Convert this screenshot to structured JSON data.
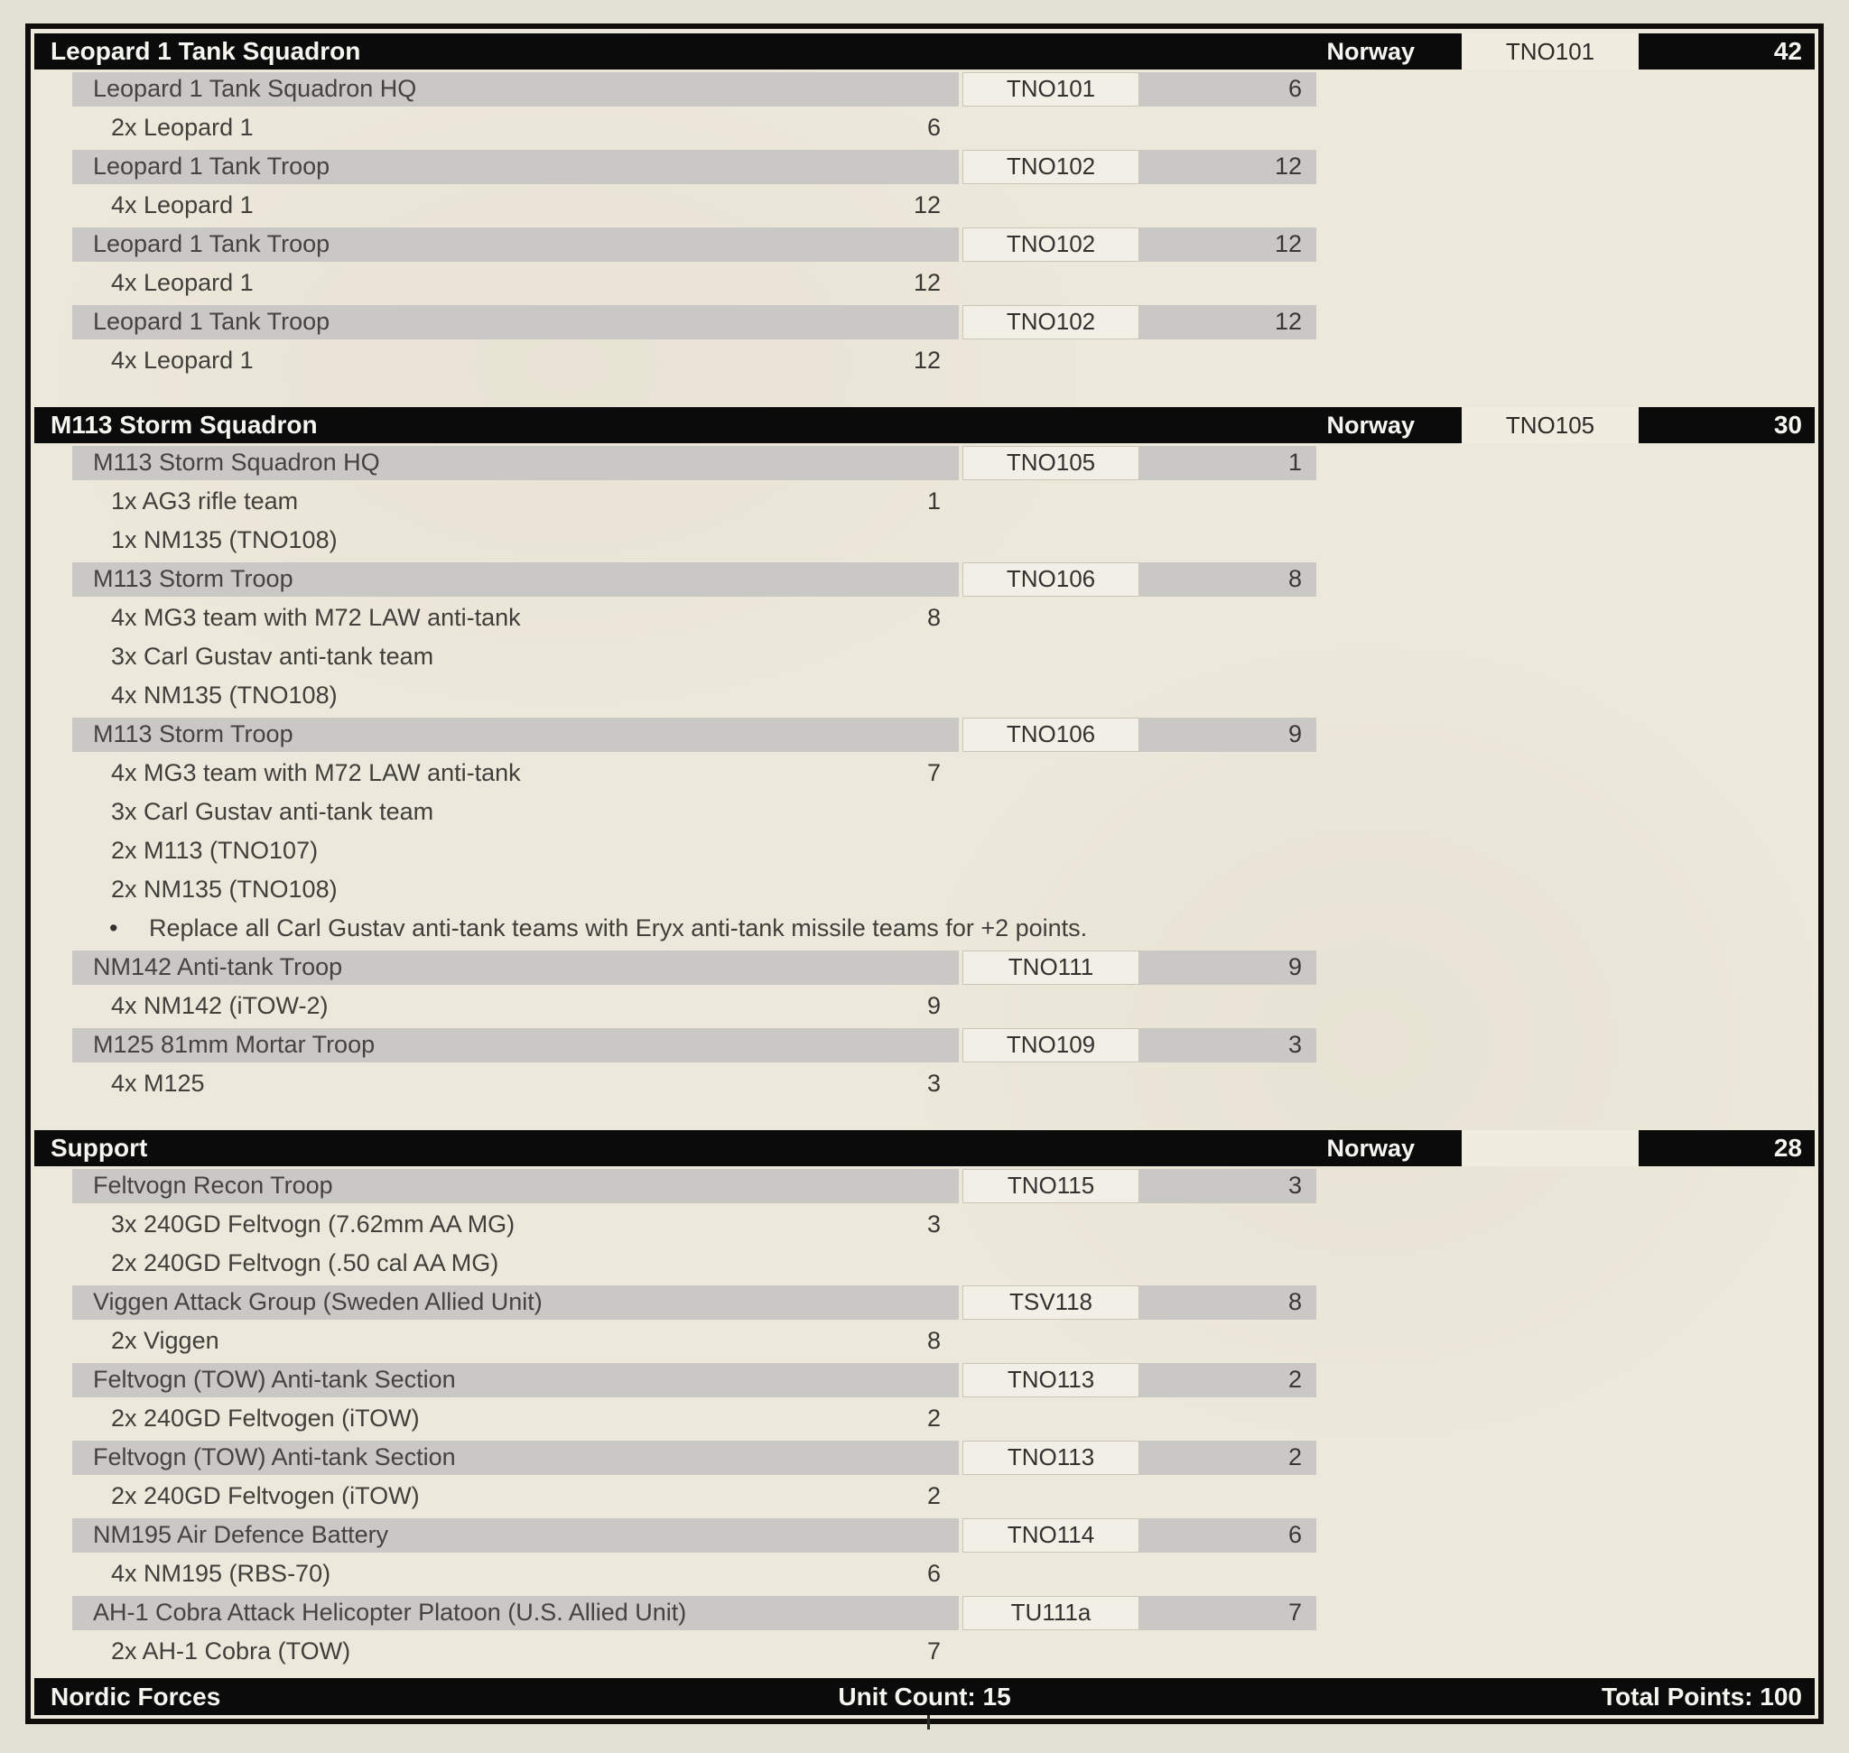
{
  "colors": {
    "bar_black": "#0b0b0b",
    "row_gray": "#c9c8c5",
    "parchment": "#ece8db",
    "page_bg": "#e2e1d5",
    "code_box_bg": "#f2efe6"
  },
  "sections": [
    {
      "title": "Leopard 1 Tank Squadron",
      "nation": "Norway",
      "code": "TNO101",
      "points": "42",
      "rows": [
        {
          "type": "unit",
          "name": "Leopard 1 Tank Squadron HQ",
          "code": "TNO101",
          "points": "6"
        },
        {
          "type": "equip",
          "name": "2x Leopard 1",
          "points": "6"
        },
        {
          "type": "unit",
          "name": "Leopard 1 Tank Troop",
          "code": "TNO102",
          "points": "12"
        },
        {
          "type": "equip",
          "name": "4x Leopard 1",
          "points": "12"
        },
        {
          "type": "unit",
          "name": "Leopard 1 Tank Troop",
          "code": "TNO102",
          "points": "12"
        },
        {
          "type": "equip",
          "name": "4x Leopard 1",
          "points": "12"
        },
        {
          "type": "unit",
          "name": "Leopard 1 Tank Troop",
          "code": "TNO102",
          "points": "12"
        },
        {
          "type": "equip",
          "name": "4x Leopard 1",
          "points": "12"
        }
      ]
    },
    {
      "title": "M113 Storm Squadron",
      "nation": "Norway",
      "code": "TNO105",
      "points": "30",
      "rows": [
        {
          "type": "unit",
          "name": "M113 Storm Squadron HQ",
          "code": "TNO105",
          "points": "1"
        },
        {
          "type": "equip",
          "name": "1x AG3 rifle team",
          "points": "1"
        },
        {
          "type": "equip",
          "name": "1x NM135 (TNO108)",
          "points": ""
        },
        {
          "type": "unit",
          "name": "M113 Storm Troop",
          "code": "TNO106",
          "points": "8"
        },
        {
          "type": "equip",
          "name": "4x MG3 team with M72 LAW anti-tank",
          "points": "8"
        },
        {
          "type": "equip",
          "name": "3x Carl Gustav anti-tank team",
          "points": ""
        },
        {
          "type": "equip",
          "name": "4x NM135 (TNO108)",
          "points": ""
        },
        {
          "type": "unit",
          "name": "M113 Storm Troop",
          "code": "TNO106",
          "points": "9"
        },
        {
          "type": "equip",
          "name": "4x MG3 team with M72 LAW anti-tank",
          "points": "7"
        },
        {
          "type": "equip",
          "name": "3x Carl Gustav anti-tank team",
          "points": ""
        },
        {
          "type": "equip",
          "name": "2x M113 (TNO107)",
          "points": ""
        },
        {
          "type": "equip",
          "name": "2x NM135 (TNO108)",
          "points": ""
        },
        {
          "type": "note",
          "bullet": "•",
          "text": "Replace all Carl Gustav anti-tank teams with Eryx anti-tank missile teams for +2 points."
        },
        {
          "type": "unit",
          "name": "NM142 Anti-tank Troop",
          "code": "TNO111",
          "points": "9"
        },
        {
          "type": "equip",
          "name": "4x NM142 (iTOW-2)",
          "points": "9"
        },
        {
          "type": "unit",
          "name": "M125 81mm Mortar Troop",
          "code": "TNO109",
          "points": "3"
        },
        {
          "type": "equip",
          "name": "4x M125",
          "points": "3"
        }
      ]
    },
    {
      "title": "Support",
      "nation": "Norway",
      "code": "",
      "points": "28",
      "rows": [
        {
          "type": "unit",
          "name": "Feltvogn Recon Troop",
          "code": "TNO115",
          "points": "3"
        },
        {
          "type": "equip",
          "name": "3x 240GD Feltvogn (7.62mm AA MG)",
          "points": "3"
        },
        {
          "type": "equip",
          "name": "2x 240GD Feltvogn (.50 cal AA MG)",
          "points": ""
        },
        {
          "type": "unit",
          "name": "Viggen Attack Group (Sweden Allied Unit)",
          "code": "TSV118",
          "points": "8"
        },
        {
          "type": "equip",
          "name": "2x Viggen",
          "points": "8"
        },
        {
          "type": "unit",
          "name": "Feltvogn (TOW) Anti-tank Section",
          "code": "TNO113",
          "points": "2"
        },
        {
          "type": "equip",
          "name": "2x 240GD Feltvogen (iTOW)",
          "points": "2"
        },
        {
          "type": "unit",
          "name": "Feltvogn (TOW) Anti-tank Section",
          "code": "TNO113",
          "points": "2"
        },
        {
          "type": "equip",
          "name": "2x 240GD Feltvogen (iTOW)",
          "points": "2"
        },
        {
          "type": "unit",
          "name": "NM195 Air Defence Battery",
          "code": "TNO114",
          "points": "6"
        },
        {
          "type": "equip",
          "name": "4x NM195 (RBS-70)",
          "points": "6"
        },
        {
          "type": "unit",
          "name": "AH-1 Cobra Attack Helicopter Platoon (U.S. Allied Unit)",
          "code": "TU111a",
          "points": "7"
        },
        {
          "type": "equip",
          "name": "2x AH-1 Cobra (TOW)",
          "points": "7"
        }
      ]
    }
  ],
  "footer": {
    "force_name": "Nordic Forces",
    "unit_count": "Unit Count: 15",
    "total_points": "Total Points: 100"
  }
}
